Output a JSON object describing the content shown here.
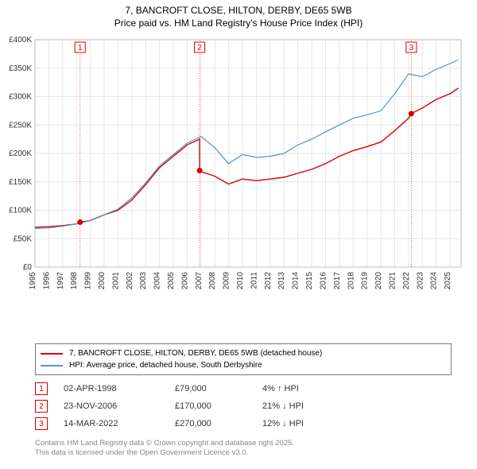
{
  "title_line1": "7, BANCROFT CLOSE, HILTON, DERBY, DE65 5WB",
  "title_line2": "Price paid vs. HM Land Registry's House Price Index (HPI)",
  "chart": {
    "type": "line",
    "background_color": "#ffffff",
    "plot_border_color": "#bdbdbd",
    "grid_color": "#e6e6e6",
    "x_years": [
      1995,
      1996,
      1997,
      1998,
      1999,
      2000,
      2001,
      2002,
      2003,
      2004,
      2005,
      2006,
      2007,
      2008,
      2009,
      2010,
      2011,
      2012,
      2013,
      2014,
      2015,
      2016,
      2017,
      2018,
      2019,
      2020,
      2021,
      2022,
      2023,
      2024,
      2025
    ],
    "xlim": [
      1995,
      2025.8
    ],
    "ylim": [
      0,
      400000
    ],
    "ytick_step": 50000,
    "yticklabels": [
      "£0",
      "£50K",
      "£100K",
      "£150K",
      "£200K",
      "£250K",
      "£300K",
      "£350K",
      "£400K"
    ],
    "axis_fontsize": 10,
    "series": [
      {
        "name": "price_paid",
        "color": "#d40000",
        "line_width": 1.4,
        "points": [
          [
            1995,
            70000
          ],
          [
            1996,
            71000
          ],
          [
            1997,
            73000
          ],
          [
            1998,
            76000
          ],
          [
            1998.26,
            79000
          ],
          [
            1999,
            82000
          ],
          [
            2000,
            92000
          ],
          [
            2001,
            100000
          ],
          [
            2002,
            118000
          ],
          [
            2003,
            145000
          ],
          [
            2004,
            175000
          ],
          [
            2005,
            195000
          ],
          [
            2006,
            215000
          ],
          [
            2006.9,
            225000
          ],
          [
            2006.9,
            170000
          ],
          [
            2007,
            168000
          ],
          [
            2008,
            160000
          ],
          [
            2009,
            146000
          ],
          [
            2010,
            155000
          ],
          [
            2011,
            152000
          ],
          [
            2012,
            155000
          ],
          [
            2013,
            158000
          ],
          [
            2014,
            165000
          ],
          [
            2015,
            172000
          ],
          [
            2016,
            182000
          ],
          [
            2017,
            195000
          ],
          [
            2018,
            205000
          ],
          [
            2019,
            212000
          ],
          [
            2020,
            220000
          ],
          [
            2021,
            240000
          ],
          [
            2022,
            262000
          ],
          [
            2022.2,
            270000
          ],
          [
            2023,
            280000
          ],
          [
            2024,
            295000
          ],
          [
            2025,
            305000
          ],
          [
            2025.6,
            315000
          ]
        ]
      },
      {
        "name": "hpi",
        "color": "#5a8fd6",
        "line_width": 1.2,
        "points": [
          [
            1995,
            68000
          ],
          [
            1996,
            69000
          ],
          [
            1997,
            72000
          ],
          [
            1998,
            76000
          ],
          [
            1999,
            82000
          ],
          [
            2000,
            92000
          ],
          [
            2001,
            102000
          ],
          [
            2002,
            122000
          ],
          [
            2003,
            148000
          ],
          [
            2004,
            178000
          ],
          [
            2005,
            198000
          ],
          [
            2006,
            218000
          ],
          [
            2007,
            230000
          ],
          [
            2008,
            210000
          ],
          [
            2009,
            182000
          ],
          [
            2010,
            198000
          ],
          [
            2011,
            193000
          ],
          [
            2012,
            195000
          ],
          [
            2013,
            200000
          ],
          [
            2014,
            215000
          ],
          [
            2015,
            225000
          ],
          [
            2016,
            238000
          ],
          [
            2017,
            250000
          ],
          [
            2018,
            262000
          ],
          [
            2019,
            268000
          ],
          [
            2020,
            275000
          ],
          [
            2021,
            305000
          ],
          [
            2022,
            340000
          ],
          [
            2023,
            335000
          ],
          [
            2024,
            348000
          ],
          [
            2025,
            358000
          ],
          [
            2025.6,
            365000
          ]
        ]
      }
    ],
    "sale_markers": [
      {
        "n": "1",
        "x": 1998.26,
        "y": 79000,
        "color": "#d40000"
      },
      {
        "n": "2",
        "x": 2006.9,
        "y": 170000,
        "color": "#d40000"
      },
      {
        "n": "3",
        "x": 2022.2,
        "y": 270000,
        "color": "#d40000"
      }
    ],
    "marker_dot_radius": 3.5,
    "marker_box_size": 13,
    "marker_box_fontsize": 10,
    "marker_line_color_alpha": 0.85
  },
  "legend": {
    "items": [
      {
        "color": "#d40000",
        "label": "7, BANCROFT CLOSE, HILTON, DERBY, DE65 5WB (detached house)"
      },
      {
        "color": "#5a8fd6",
        "label": "HPI: Average price, detached house, South Derbyshire"
      }
    ]
  },
  "sales_table": {
    "rows": [
      {
        "n": "1",
        "color": "#d40000",
        "date": "02-APR-1998",
        "price": "£79,000",
        "delta": "4% ↑ HPI"
      },
      {
        "n": "2",
        "color": "#d40000",
        "date": "23-NOV-2006",
        "price": "£170,000",
        "delta": "21% ↓ HPI"
      },
      {
        "n": "3",
        "color": "#d40000",
        "date": "14-MAR-2022",
        "price": "£270,000",
        "delta": "12% ↓ HPI"
      }
    ]
  },
  "footnote_line1": "Contains HM Land Registry data © Crown copyright and database right 2025.",
  "footnote_line2": "This data is licensed under the Open Government Licence v3.0."
}
